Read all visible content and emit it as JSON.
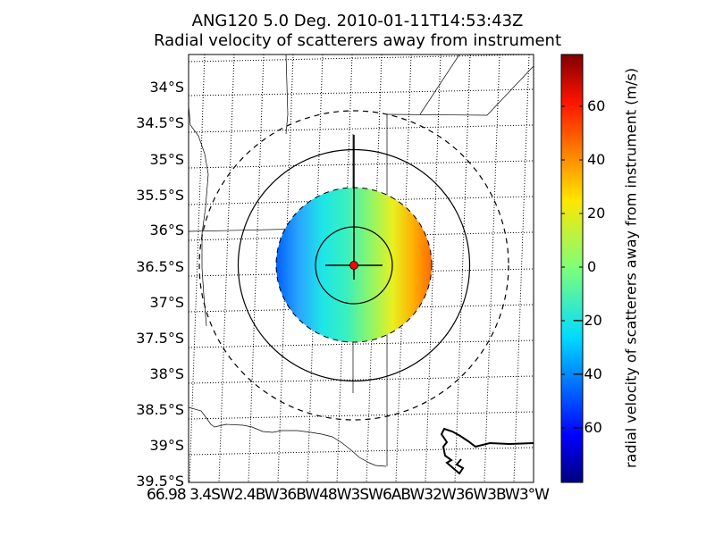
{
  "title": {
    "line1": "ANG120 5.0 Deg. 2010-01-11T14:53:43Z",
    "line2": "Radial velocity of scatterers away from instrument"
  },
  "map": {
    "lat_labels": [
      "34°S",
      "34.5°S",
      "35°S",
      "35.5°S",
      "36°S",
      "36.5°S",
      "37°S",
      "37.5°S",
      "38°S",
      "38.5°S",
      "39°S",
      "39.5°S"
    ],
    "lon_labels_text": "66.98 3.4SW2.4BW36BW48W3SW6ABW32W36W3BW3°W",
    "radar_site_color": "#ff0000",
    "range_rings": [
      "solid-inner",
      "solid-outer",
      "dashed-outer"
    ]
  },
  "colorbar": {
    "label": "radial velocity of scatterers away from instrument (m/s)",
    "ticks": [
      "60",
      "40",
      "20",
      "0",
      "−20",
      "−40",
      "−60"
    ],
    "range": [
      -80,
      80
    ],
    "colormap": "jet"
  }
}
